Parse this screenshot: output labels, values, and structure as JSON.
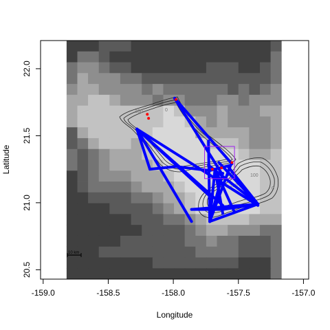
{
  "chart_data": {
    "type": "map",
    "xlabel": "Longitude",
    "ylabel": "Latitude",
    "xlim": [
      -159.02,
      -156.96
    ],
    "ylim": [
      20.43,
      22.21
    ],
    "x_ticks": [
      "-159.0",
      "-158.5",
      "-158.0",
      "-157.5",
      "-157.0"
    ],
    "x_tick_values": [
      -159.0,
      -158.5,
      -158.0,
      -157.5,
      -157.0
    ],
    "y_ticks": [
      "20.5",
      "21.0",
      "21.5",
      "22.0"
    ],
    "y_tick_values": [
      20.5,
      21.0,
      21.5,
      22.0
    ],
    "raster_extent": {
      "lon": [
        -158.82,
        -157.17
      ],
      "lat": [
        20.43,
        22.21
      ]
    },
    "contour_labels": [
      "100",
      "100",
      "0",
      "100",
      "0"
    ],
    "scale_bar_label": "10 km",
    "box": {
      "lon": [
        -157.76,
        -157.53
      ],
      "lat": [
        21.18,
        21.42
      ],
      "color": "#a020f0"
    },
    "track_color": "#0000ff",
    "point_color": "#ff0000",
    "tracks": [
      [
        [
          -158.28,
          21.55
        ],
        [
          -158.18,
          21.25
        ]
      ],
      [
        [
          -158.28,
          21.55
        ],
        [
          -157.86,
          20.86
        ]
      ],
      [
        [
          -158.28,
          21.55
        ],
        [
          -157.35,
          20.98
        ]
      ],
      [
        [
          -158.28,
          21.55
        ],
        [
          -157.62,
          20.98
        ]
      ],
      [
        [
          -158.28,
          21.55
        ],
        [
          -157.72,
          21.05
        ]
      ],
      [
        [
          -158.18,
          21.25
        ],
        [
          -157.98,
          21.27
        ]
      ],
      [
        [
          -157.98,
          21.27
        ],
        [
          -157.72,
          21.24
        ]
      ],
      [
        [
          -157.72,
          21.24
        ],
        [
          -157.56,
          21.28
        ]
      ],
      [
        [
          -157.99,
          21.78
        ],
        [
          -157.55,
          21.29
        ]
      ],
      [
        [
          -157.99,
          21.78
        ],
        [
          -157.63,
          21.22
        ]
      ],
      [
        [
          -157.73,
          21.46
        ],
        [
          -157.72,
          20.86
        ]
      ],
      [
        [
          -157.72,
          20.86
        ],
        [
          -157.56,
          21.28
        ]
      ],
      [
        [
          -157.72,
          20.86
        ],
        [
          -157.62,
          21.22
        ]
      ],
      [
        [
          -157.72,
          20.86
        ],
        [
          -157.35,
          20.99
        ]
      ],
      [
        [
          -157.72,
          20.86
        ],
        [
          -157.68,
          21.25
        ]
      ],
      [
        [
          -157.86,
          20.95
        ],
        [
          -157.35,
          20.99
        ]
      ],
      [
        [
          -157.65,
          21.3
        ],
        [
          -157.35,
          20.99
        ]
      ],
      [
        [
          -157.73,
          21.28
        ],
        [
          -157.35,
          20.99
        ]
      ],
      [
        [
          -157.68,
          21.25
        ],
        [
          -157.62,
          20.92
        ]
      ],
      [
        [
          -157.68,
          21.25
        ],
        [
          -157.53,
          20.93
        ]
      ],
      [
        [
          -157.58,
          21.27
        ],
        [
          -157.35,
          20.99
        ]
      ],
      [
        [
          -157.42,
          20.98
        ],
        [
          -157.62,
          20.95
        ]
      ],
      [
        [
          -157.86,
          20.95
        ],
        [
          -157.62,
          20.95
        ]
      ]
    ],
    "points": [
      [
        -157.98,
        21.77
      ],
      [
        -158.2,
        21.66
      ],
      [
        -158.19,
        21.63
      ],
      [
        -157.7,
        21.25
      ],
      [
        -157.63,
        21.26
      ],
      [
        -157.55,
        21.3
      ]
    ],
    "raster": [
      [
        2,
        2,
        2,
        3,
        3,
        3,
        2,
        2,
        2,
        2,
        2,
        2,
        2,
        2,
        2,
        2,
        2,
        2,
        2,
        3
      ],
      [
        2,
        4,
        4,
        3,
        2,
        2,
        2,
        2,
        2,
        2,
        2,
        2,
        2,
        2,
        2,
        2,
        2,
        2,
        2,
        4
      ],
      [
        4,
        5,
        5,
        4,
        3,
        3,
        2,
        2,
        2,
        2,
        2,
        2,
        2,
        3,
        3,
        3,
        2,
        2,
        3,
        4
      ],
      [
        4,
        6,
        5,
        5,
        5,
        4,
        4,
        3,
        3,
        3,
        3,
        3,
        3,
        3,
        3,
        3,
        3,
        3,
        3,
        4
      ],
      [
        5,
        6,
        6,
        5,
        5,
        5,
        5,
        4,
        5,
        4,
        4,
        4,
        4,
        4,
        4,
        3,
        4,
        3,
        4,
        5
      ],
      [
        6,
        6,
        7,
        7,
        6,
        5,
        5,
        5,
        4,
        5,
        5,
        4,
        4,
        4,
        5,
        5,
        4,
        5,
        5,
        5
      ],
      [
        6,
        7,
        7,
        7,
        7,
        7,
        7,
        7,
        7,
        8,
        7,
        5,
        5,
        5,
        6,
        5,
        5,
        5,
        6,
        6
      ],
      [
        6,
        7,
        7,
        7,
        7,
        7,
        7,
        7,
        7,
        8,
        8,
        7,
        6,
        5,
        6,
        5,
        5,
        5,
        5,
        6
      ],
      [
        3,
        6,
        7,
        7,
        7,
        7,
        7,
        7,
        8,
        8,
        8,
        8,
        6,
        6,
        6,
        6,
        6,
        5,
        5,
        6
      ],
      [
        3,
        4,
        6,
        7,
        7,
        7,
        6,
        7,
        8,
        8,
        8,
        8,
        8,
        7,
        7,
        7,
        6,
        5,
        5,
        6
      ],
      [
        4,
        3,
        4,
        5,
        6,
        6,
        6,
        7,
        8,
        8,
        8,
        8,
        8,
        8,
        8,
        8,
        7,
        6,
        6,
        7
      ],
      [
        4,
        3,
        4,
        5,
        6,
        6,
        6,
        6,
        7,
        8,
        8,
        8,
        8,
        8,
        8,
        8,
        8,
        8,
        7,
        7
      ],
      [
        2,
        3,
        4,
        5,
        5,
        5,
        6,
        6,
        6,
        7,
        8,
        8,
        8,
        8,
        8,
        8,
        8,
        8,
        7,
        7
      ],
      [
        2,
        3,
        4,
        4,
        4,
        4,
        5,
        6,
        6,
        6,
        7,
        8,
        8,
        8,
        8,
        8,
        8,
        8,
        7,
        7
      ],
      [
        2,
        2,
        3,
        3,
        3,
        3,
        4,
        4,
        5,
        6,
        6,
        7,
        8,
        8,
        8,
        8,
        8,
        8,
        7,
        7
      ],
      [
        2,
        2,
        2,
        2,
        3,
        3,
        3,
        3,
        4,
        5,
        6,
        7,
        8,
        8,
        8,
        8,
        8,
        8,
        7,
        7
      ],
      [
        2,
        2,
        2,
        2,
        2,
        2,
        3,
        3,
        3,
        4,
        4,
        5,
        6,
        7,
        7,
        7,
        7,
        6,
        6,
        6
      ],
      [
        2,
        2,
        2,
        2,
        2,
        2,
        2,
        3,
        3,
        3,
        3,
        4,
        5,
        6,
        6,
        5,
        5,
        5,
        4,
        4
      ],
      [
        2,
        2,
        2,
        2,
        2,
        3,
        3,
        3,
        3,
        3,
        3,
        4,
        4,
        5,
        4,
        4,
        3,
        3,
        3,
        4
      ],
      [
        2,
        2,
        2,
        3,
        3,
        3,
        3,
        3,
        3,
        3,
        3,
        3,
        4,
        4,
        4,
        4,
        3,
        3,
        3,
        4
      ],
      [
        2,
        2,
        2,
        2,
        2,
        2,
        2,
        2,
        3,
        3,
        3,
        3,
        3,
        3,
        3,
        3,
        2,
        2,
        2,
        4
      ],
      [
        2,
        2,
        2,
        2,
        2,
        2,
        2,
        2,
        2,
        2,
        2,
        2,
        2,
        2,
        2,
        2,
        2,
        2,
        2,
        4
      ]
    ]
  }
}
